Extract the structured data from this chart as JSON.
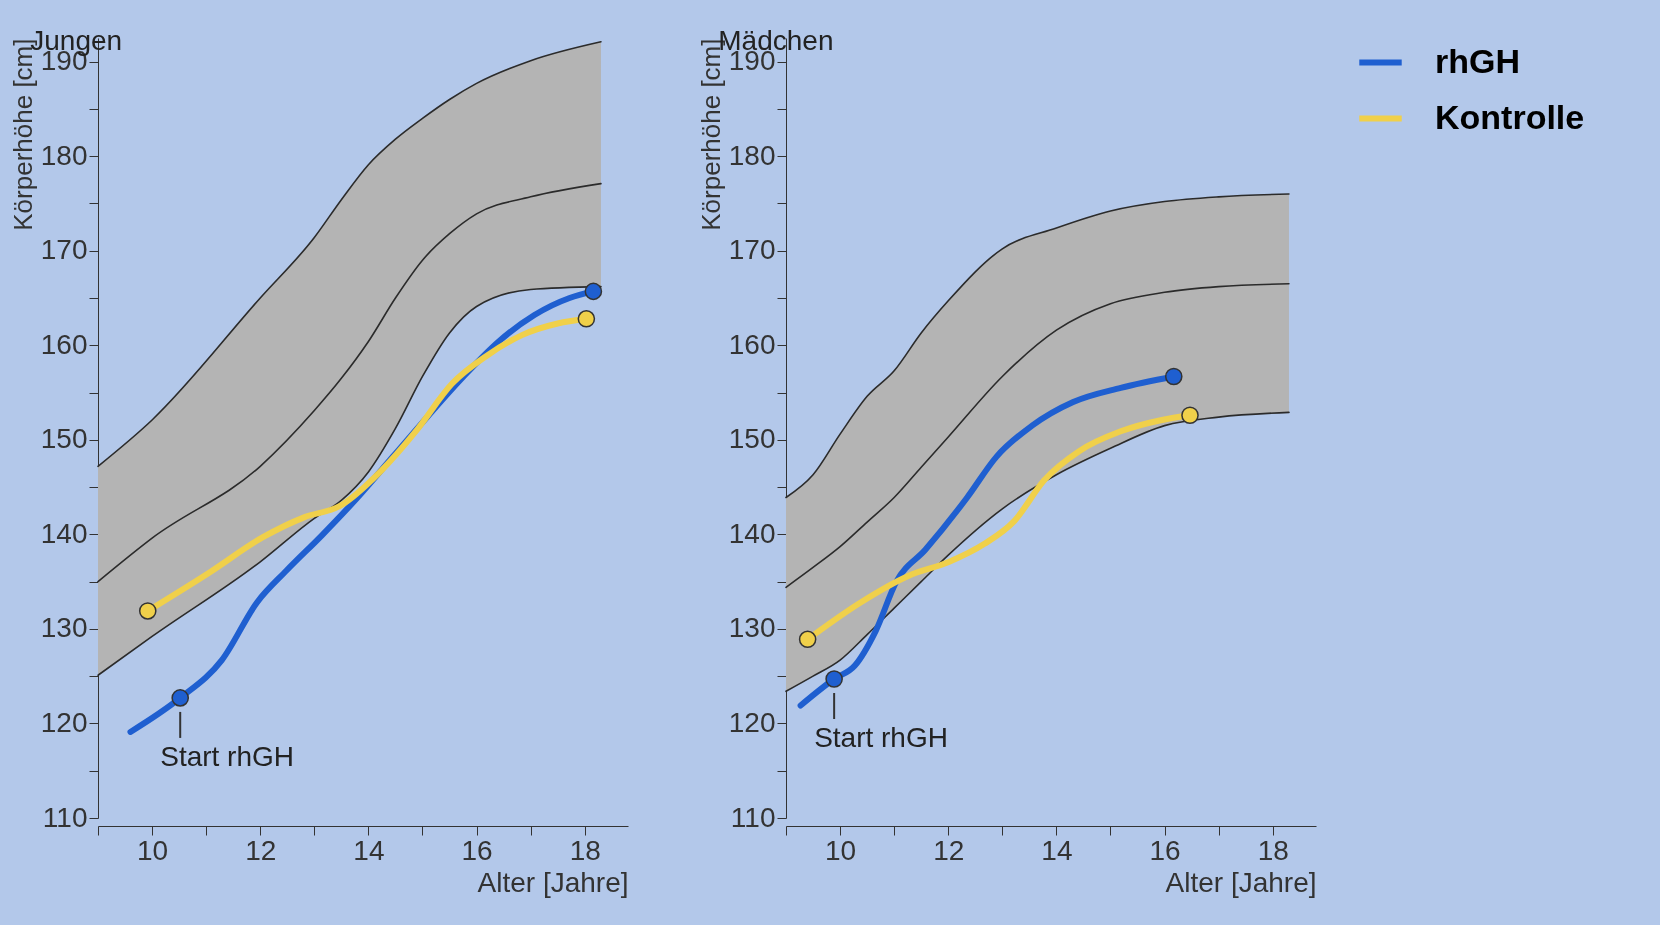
{
  "chart_data": [
    {
      "type": "line",
      "title": "Jungen",
      "xlabel": "Alter [Jahre]",
      "ylabel": "Körperhöhe [cm]",
      "xlim": [
        9,
        18.8
      ],
      "ylim": [
        110,
        192.5
      ],
      "xticks": [
        {
          "value": 9,
          "label": null
        },
        10,
        {
          "value": 11,
          "label": null
        },
        12,
        {
          "value": 13,
          "label": null
        },
        14,
        {
          "value": 15,
          "label": null
        },
        16,
        {
          "value": 17,
          "label": null
        },
        18
      ],
      "yticks": [
        110,
        {
          "value": 115,
          "label": null
        },
        120,
        {
          "value": 125,
          "label": null
        },
        130,
        {
          "value": 135,
          "label": null
        },
        140,
        {
          "value": 145,
          "label": null
        },
        150,
        {
          "value": 155,
          "label": null
        },
        160,
        {
          "value": 165,
          "label": null
        },
        170,
        {
          "value": 175,
          "label": null
        },
        180,
        {
          "value": 185,
          "label": null
        },
        190
      ],
      "series": [
        {
          "color": "#2b2b2b",
          "x": [
            9,
            10,
            12,
            13,
            13.5,
            14,
            14.5,
            15,
            15.5,
            16,
            17,
            18.3
          ],
          "values": [
            135.0,
            139.6,
            147.2,
            153.1,
            156.5,
            160.4,
            165.0,
            169.0,
            171.8,
            173.9,
            175.7,
            177.1
          ],
          "lower": [
            125.1,
            129.2,
            137.1,
            141.7,
            143.6,
            146.6,
            151.2,
            156.7,
            161.3,
            164.1,
            165.9,
            166.2
          ],
          "upper": [
            147.2,
            152.1,
            165.0,
            171.4,
            175.4,
            179.1,
            181.8,
            184.0,
            186.0,
            187.7,
            190.1,
            192.1
          ]
        },
        {
          "color": "#2b2b2b",
          "x": [
            9,
            10,
            12,
            13,
            13.5,
            14,
            14.5,
            15,
            15.5,
            16,
            17,
            18.3
          ],
          "values": [
            125.1,
            129.2,
            137.1,
            141.7,
            143.6,
            146.6,
            151.2,
            156.7,
            161.3,
            164.1,
            165.9,
            166.2
          ]
        },
        {
          "color": "#2b2b2b",
          "x": [
            9,
            10,
            12,
            13,
            13.5,
            14,
            14.5,
            15,
            15.5,
            16,
            17,
            18.3
          ],
          "values": [
            147.2,
            152.1,
            165.0,
            171.4,
            175.4,
            179.1,
            181.8,
            184.0,
            186.0,
            187.7,
            190.1,
            192.1
          ]
        },
        {
          "color": "#1f5fd0",
          "x": [
            9.6,
            10.52,
            11.29,
            11.94,
            12.49,
            13.14,
            13.8,
            14.45,
            15.1,
            15.76,
            16.41,
            17.07,
            17.72,
            18.16
          ],
          "values": [
            119.1,
            122.7,
            126.7,
            132.8,
            136.2,
            139.9,
            143.9,
            148.2,
            152.5,
            156.7,
            160.4,
            163.2,
            165.0,
            165.7
          ]
        },
        {
          "color": "#f0d04a",
          "x": [
            9.92,
            11.07,
            12.05,
            12.81,
            13.47,
            14.23,
            14.89,
            15.54,
            16.19,
            16.85,
            17.5,
            18.03
          ],
          "values": [
            131.9,
            136.0,
            139.7,
            141.8,
            143.0,
            146.7,
            151.0,
            155.9,
            158.9,
            161.1,
            162.3,
            162.8
          ]
        },
        {
          "type": "scatter",
          "marker": "circle",
          "color": "#1f5fd0",
          "x": [
            10.52,
            18.16
          ],
          "values": [
            122.7,
            165.7
          ]
        },
        {
          "type": "scatter",
          "marker": "circle",
          "color": "#f0d04a",
          "x": [
            9.92,
            18.03
          ],
          "values": [
            131.9,
            162.8
          ]
        }
      ],
      "annotations": [
        {
          "text": "Start rhGH",
          "x": 10.52,
          "y": 122.7
        }
      ]
    },
    {
      "type": "line",
      "title": "Mädchen",
      "xlabel": "Alter [Jahre]",
      "ylabel": "Körperhöhe [cm]",
      "xlim": [
        9,
        18.8
      ],
      "ylim": [
        110,
        192.5
      ],
      "xticks": [
        {
          "value": 9,
          "label": null
        },
        10,
        {
          "value": 11,
          "label": null
        },
        12,
        {
          "value": 13,
          "label": null
        },
        14,
        {
          "value": 15,
          "label": null
        },
        16,
        {
          "value": 17,
          "label": null
        },
        18
      ],
      "yticks": [
        110,
        {
          "value": 115,
          "label": null
        },
        120,
        {
          "value": 125,
          "label": null
        },
        130,
        {
          "value": 135,
          "label": null
        },
        140,
        {
          "value": 145,
          "label": null
        },
        150,
        {
          "value": 155,
          "label": null
        },
        160,
        {
          "value": 165,
          "label": null
        },
        170,
        {
          "value": 175,
          "label": null
        },
        180,
        {
          "value": 185,
          "label": null
        },
        190
      ],
      "legend": "right",
      "series": [
        {
          "color": "#2b2b2b",
          "x": [
            9,
            9.5,
            10,
            10.5,
            11,
            11.5,
            12,
            13,
            14,
            15,
            16,
            17,
            18.3
          ],
          "values": [
            134.4,
            136.5,
            138.7,
            141.3,
            143.9,
            147.1,
            150.3,
            156.7,
            161.6,
            164.4,
            165.6,
            166.2,
            166.5
          ],
          "lower": [
            123.4,
            125.0,
            126.7,
            129.4,
            132.2,
            135.0,
            137.8,
            142.7,
            146.3,
            149.1,
            151.5,
            152.4,
            152.9
          ],
          "upper": [
            143.9,
            146.3,
            150.6,
            154.6,
            157.3,
            161.3,
            164.7,
            170.2,
            172.4,
            174.2,
            175.2,
            175.7,
            176.0
          ]
        },
        {
          "color": "#2b2b2b",
          "x": [
            9,
            9.5,
            10,
            10.5,
            11,
            11.5,
            12,
            13,
            14,
            15,
            16,
            17,
            18.3
          ],
          "values": [
            123.4,
            125.0,
            126.7,
            129.4,
            132.2,
            135.0,
            137.8,
            142.7,
            146.3,
            149.1,
            151.5,
            152.4,
            152.9
          ]
        },
        {
          "color": "#2b2b2b",
          "x": [
            9,
            9.5,
            10,
            10.5,
            11,
            11.5,
            12,
            13,
            14,
            15,
            16,
            17,
            18.3
          ],
          "values": [
            143.9,
            146.3,
            150.6,
            154.6,
            157.3,
            161.3,
            164.7,
            170.2,
            172.4,
            174.2,
            175.2,
            175.7,
            176.0
          ]
        },
        {
          "name": "rhGH",
          "color": "#1f5fd0",
          "x": [
            9.27,
            9.89,
            10.27,
            10.66,
            11.04,
            11.58,
            12.35,
            12.89,
            13.55,
            14.31,
            15.19,
            16.17
          ],
          "values": [
            121.9,
            124.7,
            126.1,
            129.8,
            135.0,
            138.4,
            143.9,
            148.2,
            151.5,
            154.0,
            155.5,
            156.7
          ]
        },
        {
          "name": "Kontrolle",
          "color": "#f0d04a",
          "x": [
            9.4,
            10.38,
            11.26,
            12.02,
            12.67,
            13.22,
            13.77,
            14.42,
            15.19,
            15.95,
            16.47
          ],
          "values": [
            128.9,
            132.8,
            135.6,
            137.1,
            139.0,
            141.4,
            145.7,
            148.8,
            150.9,
            152.1,
            152.6
          ]
        },
        {
          "type": "scatter",
          "marker": "circle",
          "color": "#1f5fd0",
          "x": [
            9.89,
            16.17
          ],
          "values": [
            124.7,
            156.7
          ]
        },
        {
          "type": "scatter",
          "marker": "circle",
          "color": "#f0d04a",
          "x": [
            9.4,
            16.47
          ],
          "values": [
            128.9,
            152.6
          ]
        }
      ],
      "annotations": [
        {
          "text": "Start rhGH",
          "x": 9.89,
          "y": 124.7
        }
      ]
    }
  ]
}
